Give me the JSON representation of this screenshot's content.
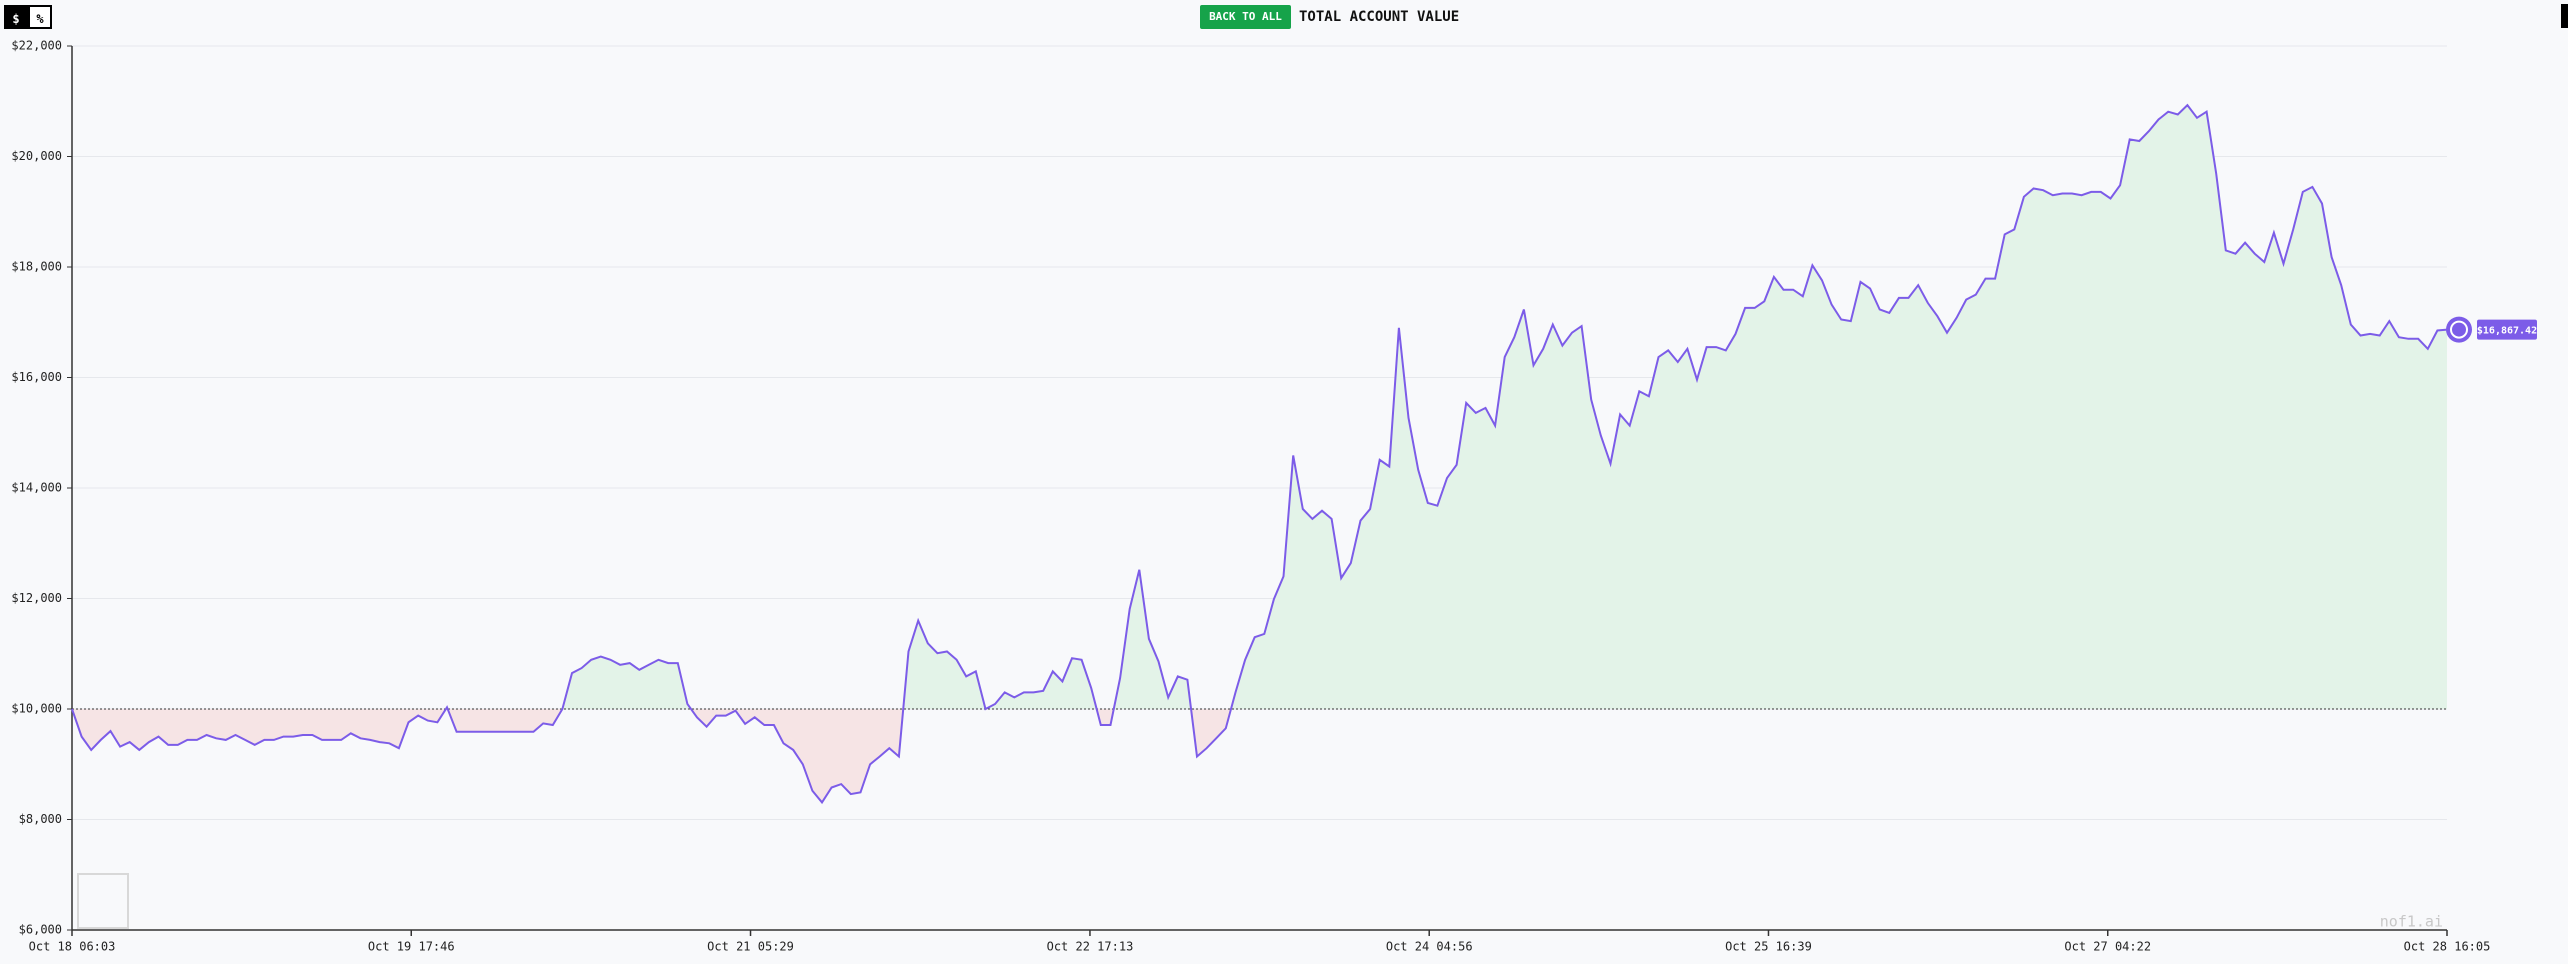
{
  "toolbar": {
    "dollar_button": "$",
    "percent_button": "%",
    "back_button": "BACK TO ALL",
    "title": "TOTAL ACCOUNT VALUE"
  },
  "chart_data": {
    "type": "line",
    "xlim": [
      "Oct 18 06:03",
      "Oct 28 16:05"
    ],
    "xticks": [
      "Oct 18 06:03",
      "Oct 19 17:46",
      "Oct 21 05:29",
      "Oct 22 17:13",
      "Oct 24 04:56",
      "Oct 25 16:39",
      "Oct 27 04:22",
      "Oct 28 16:05"
    ],
    "ylim": [
      6000,
      22000
    ],
    "yticks": [
      {
        "value": 6000,
        "label": "$6,000"
      },
      {
        "value": 8000,
        "label": "$8,000"
      },
      {
        "value": 10000,
        "label": "$10,000"
      },
      {
        "value": 12000,
        "label": "$12,000"
      },
      {
        "value": 14000,
        "label": "$14,000"
      },
      {
        "value": 16000,
        "label": "$16,000"
      },
      {
        "value": 18000,
        "label": "$18,000"
      },
      {
        "value": 20000,
        "label": "$20,000"
      },
      {
        "value": 22000,
        "label": "$22,000"
      }
    ],
    "baseline": 10000,
    "grid": true,
    "color": "#7c5ce8",
    "above_color": "#e3f3e8",
    "below_color": "#f6e4e5",
    "last_value_label": "$16,867.42",
    "watermark": "nof1.ai",
    "values": [
      10000,
      9500,
      9260,
      9440,
      9600,
      9320,
      9400,
      9260,
      9400,
      9500,
      9350,
      9350,
      9440,
      9440,
      9530,
      9470,
      9440,
      9530,
      9440,
      9350,
      9440,
      9440,
      9500,
      9500,
      9530,
      9530,
      9440,
      9440,
      9440,
      9560,
      9470,
      9440,
      9400,
      9380,
      9290,
      9760,
      9880,
      9790,
      9760,
      10030,
      9590,
      9590,
      9590,
      9590,
      9590,
      9590,
      9590,
      9590,
      9590,
      9740,
      9710,
      10000,
      10650,
      10740,
      10890,
      10950,
      10890,
      10800,
      10830,
      10710,
      10800,
      10890,
      10830,
      10830,
      10090,
      9850,
      9680,
      9880,
      9880,
      9970,
      9730,
      9850,
      9710,
      9710,
      9380,
      9260,
      9000,
      8520,
      8310,
      8580,
      8640,
      8460,
      8490,
      9000,
      9140,
      9290,
      9140,
      11040,
      11600,
      11190,
      11010,
      11040,
      10890,
      10590,
      10680,
      10000,
      10090,
      10300,
      10210,
      10300,
      10300,
      10330,
      10680,
      10500,
      10920,
      10890,
      10380,
      9710,
      9710,
      10560,
      11810,
      12520,
      11270,
      10860,
      10210,
      10590,
      10530,
      9140,
      9290,
      9470,
      9650,
      10300,
      10890,
      11300,
      11360,
      11990,
      12400,
      14590,
      13620,
      13440,
      13590,
      13440,
      12370,
      12640,
      13410,
      13620,
      14510,
      14390,
      16900,
      15270,
      14330,
      13730,
      13680,
      14180,
      14420,
      15540,
      15360,
      15450,
      15130,
      16370,
      16730,
      17230,
      16220,
      16520,
      16960,
      16580,
      16810,
      16930,
      15600,
      14950,
      14440,
      15330,
      15130,
      15750,
      15660,
      16370,
      16490,
      16280,
      16520,
      15960,
      16550,
      16550,
      16490,
      16790,
      17260,
      17260,
      17380,
      17820,
      17590,
      17590,
      17470,
      18030,
      17760,
      17320,
      17050,
      17020,
      17730,
      17610,
      17230,
      17170,
      17440,
      17440,
      17670,
      17350,
      17110,
      16810,
      17080,
      17410,
      17500,
      17790,
      17790,
      18590,
      18680,
      19270,
      19420,
      19390,
      19300,
      19330,
      19330,
      19300,
      19360,
      19360,
      19240,
      19480,
      20310,
      20280,
      20460,
      20670,
      20810,
      20760,
      20930,
      20700,
      20810,
      19690,
      18300,
      18240,
      18440,
      18240,
      18090,
      18620,
      18060,
      18680,
      19360,
      19450,
      19150,
      18180,
      17670,
      16960,
      16760,
      16790,
      16760,
      17020,
      16730,
      16700,
      16700,
      16520,
      16850,
      16867.42
    ]
  }
}
